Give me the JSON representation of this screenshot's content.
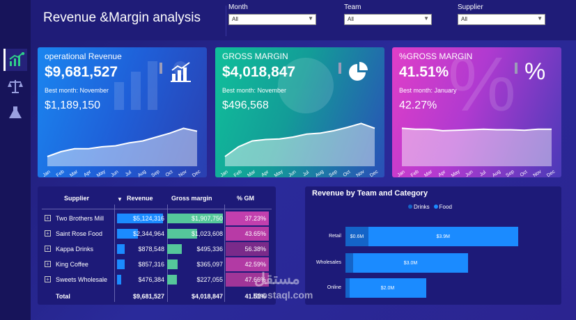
{
  "header": {
    "title": "Revenue &Margin analysis",
    "filters": [
      {
        "label": "Month",
        "value": "All"
      },
      {
        "label": "Team",
        "value": "All"
      },
      {
        "label": "Supplier",
        "value": "All"
      }
    ]
  },
  "sidebar": {
    "items": [
      {
        "icon": "chart-up-icon",
        "active": true
      },
      {
        "icon": "scale-icon",
        "active": false
      },
      {
        "icon": "flask-icon",
        "active": false
      }
    ]
  },
  "cards": [
    {
      "title": "operational Revenue",
      "value": "$9,681,527",
      "best_label": "Best month: November",
      "best_value": "$1,189,150",
      "icon": "bar-chart-icon",
      "spark": [
        0.2,
        0.3,
        0.36,
        0.36,
        0.4,
        0.42,
        0.48,
        0.52,
        0.6,
        0.68,
        0.78,
        0.72
      ]
    },
    {
      "title": "GROSS MARGIN",
      "value": "$4,018,847",
      "best_label": "Best month: November",
      "best_value": "$496,568",
      "icon": "pie-chart-icon",
      "spark": [
        0.2,
        0.4,
        0.52,
        0.55,
        0.56,
        0.6,
        0.66,
        0.68,
        0.73,
        0.8,
        0.88,
        0.78
      ]
    },
    {
      "title": "%GROSS MARGIN",
      "value": "41.51%",
      "best_label": "Best month: January",
      "best_value": "42.27%",
      "icon": "percent-icon",
      "spark": [
        0.78,
        0.76,
        0.76,
        0.73,
        0.74,
        0.75,
        0.76,
        0.75,
        0.75,
        0.74,
        0.76,
        0.76
      ]
    }
  ],
  "months": [
    "Jan",
    "Feb",
    "Mar",
    "Apr",
    "May",
    "Jun",
    "Jul",
    "Aug",
    "Sep",
    "Oct",
    "Nov",
    "Dec"
  ],
  "table": {
    "headers": {
      "supplier": "Supplier",
      "revenue": "Revenue",
      "gross_margin": "Gross margin",
      "pct_gm": "% GM"
    },
    "rows": [
      {
        "supplier": "Two Brothers Mill",
        "revenue": "$5,124,316",
        "revenue_num": 5124316,
        "gross_margin": "$1,907,750",
        "gm_num": 1907750,
        "pct_gm": "37.23%",
        "pct_num": 37.23
      },
      {
        "supplier": "Saint Rose Food",
        "revenue": "$2,344,964",
        "revenue_num": 2344964,
        "gross_margin": "$1,023,608",
        "gm_num": 1023608,
        "pct_gm": "43.65%",
        "pct_num": 43.65
      },
      {
        "supplier": "Kappa Drinks",
        "revenue": "$878,548",
        "revenue_num": 878548,
        "gross_margin": "$495,336",
        "gm_num": 495336,
        "pct_gm": "56.38%",
        "pct_num": 56.38
      },
      {
        "supplier": "King Coffee",
        "revenue": "$857,316",
        "revenue_num": 857316,
        "gross_margin": "$365,097",
        "gm_num": 365097,
        "pct_gm": "42.59%",
        "pct_num": 42.59
      },
      {
        "supplier": "Sweets Wholesale",
        "revenue": "$476,384",
        "revenue_num": 476384,
        "gross_margin": "$227,055",
        "gm_num": 227055,
        "pct_gm": "47.66%",
        "pct_num": 47.66
      }
    ],
    "total": {
      "label": "Total",
      "revenue": "$9,681,527",
      "gross_margin": "$4,018,847",
      "pct_gm": "41.51%"
    }
  },
  "chart_data": {
    "type": "bar",
    "title": "Revenue by Team and Category",
    "orientation": "horizontal",
    "stacked": true,
    "categories": [
      "Retail",
      "Wholesales",
      "Online"
    ],
    "series": [
      {
        "name": "Drinks",
        "values": [
          0.6,
          0.2,
          0.1
        ],
        "labels": [
          "$0.6M",
          "",
          ""
        ],
        "color": "#1464c8"
      },
      {
        "name": "Food",
        "values": [
          3.9,
          3.0,
          2.0
        ],
        "labels": [
          "$3.9M",
          "$3.0M",
          "$2.0M"
        ],
        "color": "#1b8bff"
      }
    ],
    "legend": "top"
  },
  "watermark": {
    "arabic": "مستقل",
    "latin": "mostaql.com"
  },
  "colors": {
    "revenue_bar": "#1b8bff",
    "gm_bar": "#55c79b",
    "pct_cell": "#c23fae"
  }
}
